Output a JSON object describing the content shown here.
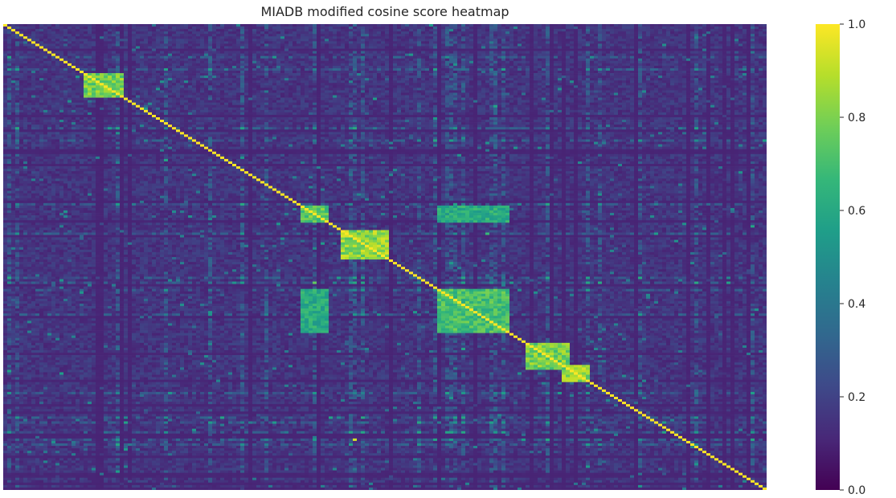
{
  "chart_data": {
    "type": "heatmap",
    "title": "MIADB modified cosine score heatmap",
    "xlabel": "",
    "ylabel": "",
    "n": 190,
    "value_range": [
      0.0,
      1.0
    ],
    "colormap": "viridis",
    "colormap_stops": [
      "#440154",
      "#482878",
      "#3e4989",
      "#31688e",
      "#26828e",
      "#1f9e89",
      "#35b779",
      "#6ece58",
      "#b5de2b",
      "#fde725"
    ],
    "colorbar_ticks": [
      "0.0",
      "0.2",
      "0.4",
      "0.6",
      "0.8",
      "1.0"
    ],
    "diagonal_value": 1.0,
    "background_level": 0.1,
    "blocks": [
      {
        "rows": [
          20,
          29
        ],
        "cols": [
          20,
          29
        ],
        "value": 0.9
      },
      {
        "rows": [
          74,
          80
        ],
        "cols": [
          74,
          80
        ],
        "value": 0.85
      },
      {
        "rows": [
          84,
          95
        ],
        "cols": [
          84,
          95
        ],
        "value": 0.95
      },
      {
        "rows": [
          108,
          125
        ],
        "cols": [
          108,
          125
        ],
        "value": 0.8
      },
      {
        "rows": [
          130,
          140
        ],
        "cols": [
          130,
          140
        ],
        "value": 0.9
      },
      {
        "rows": [
          139,
          145
        ],
        "cols": [
          139,
          145
        ],
        "value": 0.95
      },
      {
        "rows": [
          74,
          80
        ],
        "cols": [
          108,
          125
        ],
        "value": 0.7
      },
      {
        "rows": [
          108,
          125
        ],
        "cols": [
          74,
          80
        ],
        "value": 0.7
      }
    ]
  }
}
